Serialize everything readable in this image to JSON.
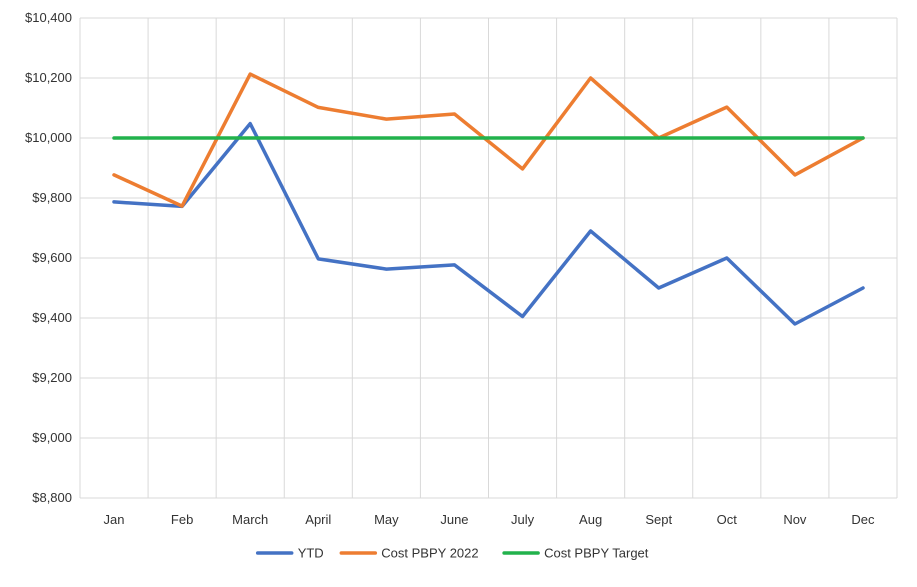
{
  "chart_data": {
    "type": "line",
    "title": "",
    "xlabel": "",
    "ylabel": "",
    "categories": [
      "Jan",
      "Feb",
      "March",
      "April",
      "May",
      "June",
      "July",
      "Aug",
      "Sept",
      "Oct",
      "Nov",
      "Dec"
    ],
    "ylim": [
      8800,
      10400
    ],
    "y_ticks": [
      8800,
      9000,
      9200,
      9400,
      9600,
      9800,
      10000,
      10200,
      10400
    ],
    "y_tick_labels": [
      "$8,800",
      "$9,000",
      "$9,200",
      "$9,400",
      "$9,600",
      "$9,800",
      "$10,000",
      "$10,200",
      "$10,400"
    ],
    "grid": true,
    "legend_position": "bottom",
    "series": [
      {
        "name": "YTD",
        "color": "#4472c4",
        "values": [
          9787,
          9772,
          10048,
          9597,
          9563,
          9577,
          9405,
          9690,
          9500,
          9600,
          9380,
          9500
        ]
      },
      {
        "name": "Cost PBPY 2022",
        "color": "#ed7d31",
        "values": [
          9877,
          9773,
          10213,
          10102,
          10063,
          10080,
          9897,
          10200,
          10000,
          10103,
          9877,
          10000
        ]
      },
      {
        "name": "Cost PBPY Target",
        "color": "#22b24c",
        "values": [
          10000,
          10000,
          10000,
          10000,
          10000,
          10000,
          10000,
          10000,
          10000,
          10000,
          10000,
          10000
        ]
      }
    ]
  }
}
